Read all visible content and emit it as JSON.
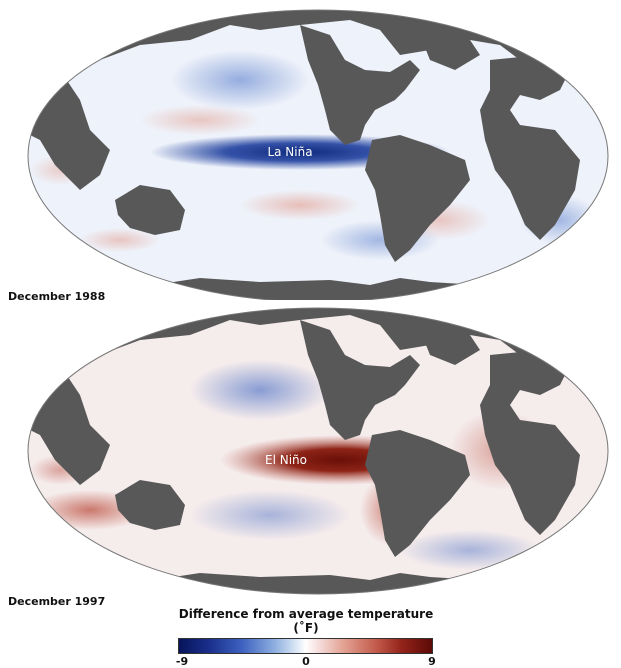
{
  "maps": [
    {
      "date": "December 1988",
      "label": "La Niña"
    },
    {
      "date": "December 1997",
      "label": "El Niño"
    }
  ],
  "legend": {
    "title": "Difference from average temperature (˚F)",
    "ticks": [
      "-9",
      "0",
      "9"
    ],
    "min": -9,
    "max": 9
  },
  "colors": {
    "land": "#585858",
    "cold_extreme": "#08145a",
    "neutral": "#ffffff",
    "warm_extreme": "#5c0a06"
  }
}
